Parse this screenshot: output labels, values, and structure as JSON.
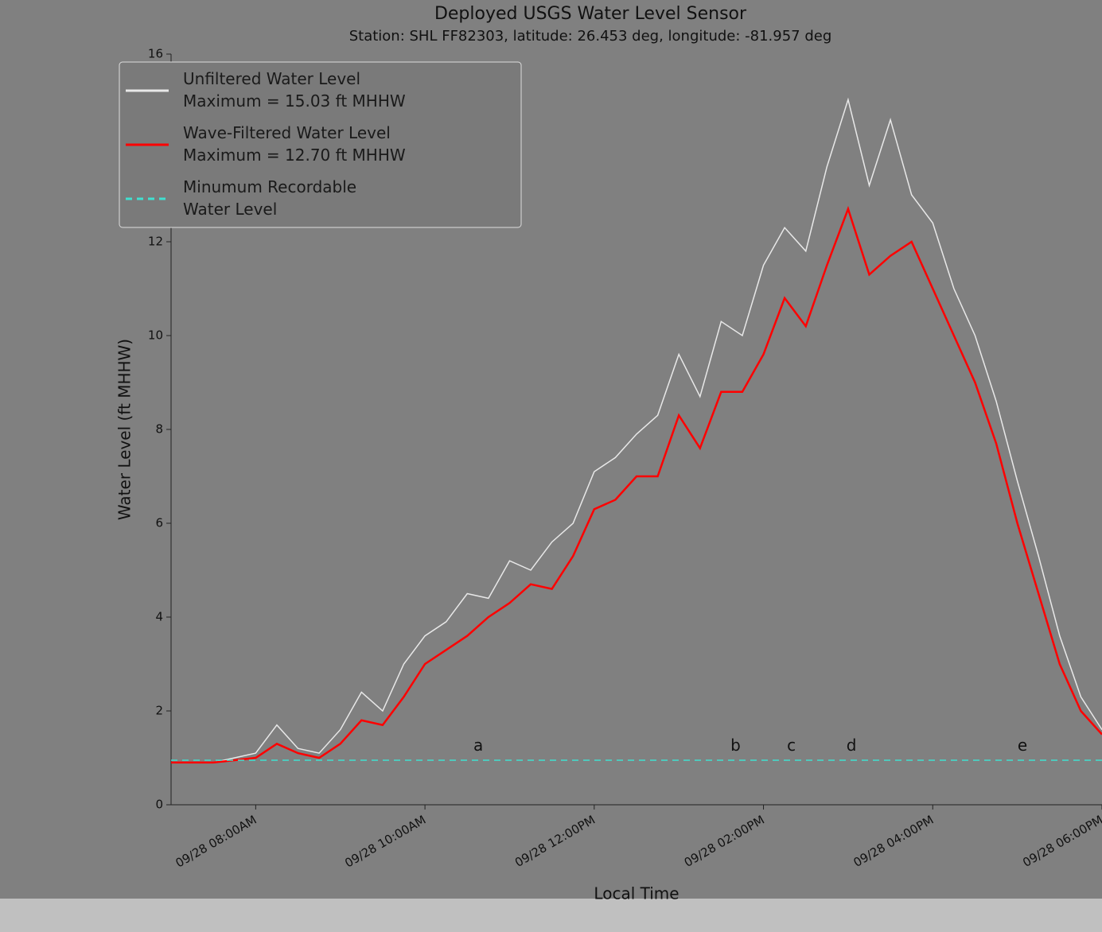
{
  "chart_data": {
    "type": "line",
    "title": "Deployed USGS Water Level Sensor",
    "subtitle": "Station: SHL FF82303, latitude: 26.453 deg, longitude: -81.957 deg",
    "xlabel": "Local Time",
    "ylabel": "Water Level (ft MHHW)",
    "xlim": [
      7,
      18
    ],
    "ylim": [
      0,
      16
    ],
    "yticks": [
      0,
      2,
      4,
      6,
      8,
      10,
      12,
      14,
      16
    ],
    "xticks": [
      {
        "value": 8,
        "label": "09/28 08:00AM"
      },
      {
        "value": 10,
        "label": "09/28 10:00AM"
      },
      {
        "value": 12,
        "label": "09/28 12:00PM"
      },
      {
        "value": 14,
        "label": "09/28 02:00PM"
      },
      {
        "value": 16,
        "label": "09/28 04:00PM"
      },
      {
        "value": 18,
        "label": "09/28 06:00PM"
      }
    ],
    "legend": "upper left",
    "x": [
      7,
      7.25,
      7.5,
      7.75,
      8,
      8.25,
      8.5,
      8.75,
      9,
      9.25,
      9.5,
      9.75,
      10,
      10.25,
      10.5,
      10.75,
      11,
      11.25,
      11.5,
      11.75,
      12,
      12.25,
      12.5,
      12.75,
      13,
      13.25,
      13.5,
      13.75,
      14,
      14.25,
      14.5,
      14.75,
      15,
      15.25,
      15.5,
      15.75,
      16,
      16.25,
      16.5,
      16.75,
      17,
      17.25,
      17.5,
      17.75,
      18
    ],
    "series": [
      {
        "name": "Unfiltered Water Level\nMaximum = 15.03 ft MHHW",
        "color": "#e8e8e8",
        "values": [
          0.9,
          0.9,
          0.9,
          1.0,
          1.1,
          1.7,
          1.2,
          1.1,
          1.6,
          2.4,
          2.0,
          3.0,
          3.6,
          3.9,
          4.5,
          4.4,
          5.2,
          5.0,
          5.6,
          6.0,
          7.1,
          7.4,
          7.9,
          8.3,
          9.6,
          8.7,
          10.3,
          10.0,
          11.5,
          12.3,
          11.8,
          13.6,
          15.03,
          13.2,
          14.6,
          13.0,
          12.4,
          11.0,
          10.0,
          8.6,
          6.9,
          5.3,
          3.6,
          2.3,
          1.6
        ]
      },
      {
        "name": "Wave-Filtered Water Level\nMaximum = 12.70 ft MHHW",
        "color": "#ff0000",
        "values": [
          0.9,
          0.9,
          0.9,
          0.95,
          1.0,
          1.3,
          1.1,
          1.0,
          1.3,
          1.8,
          1.7,
          2.3,
          3.0,
          3.3,
          3.6,
          4.0,
          4.3,
          4.7,
          4.6,
          5.3,
          6.3,
          6.5,
          7.0,
          7.0,
          8.3,
          7.6,
          8.8,
          8.8,
          9.6,
          10.8,
          10.2,
          11.5,
          12.7,
          11.3,
          11.7,
          12.0,
          11.0,
          10.0,
          9.0,
          7.7,
          6.0,
          4.5,
          3.0,
          2.0,
          1.5
        ]
      },
      {
        "name": "Minumum Recordable\nWater Level",
        "color": "#40e0d0",
        "dashed": true,
        "x": [
          7,
          18
        ],
        "values": [
          0.95,
          0.95
        ]
      }
    ],
    "annotations": [
      {
        "text": "a",
        "x": 10.63,
        "y": 1.25
      },
      {
        "text": "b",
        "x": 13.67,
        "y": 1.25
      },
      {
        "text": "c",
        "x": 14.33,
        "y": 1.25
      },
      {
        "text": "d",
        "x": 15.04,
        "y": 1.25
      },
      {
        "text": "e",
        "x": 17.06,
        "y": 1.25
      }
    ]
  }
}
